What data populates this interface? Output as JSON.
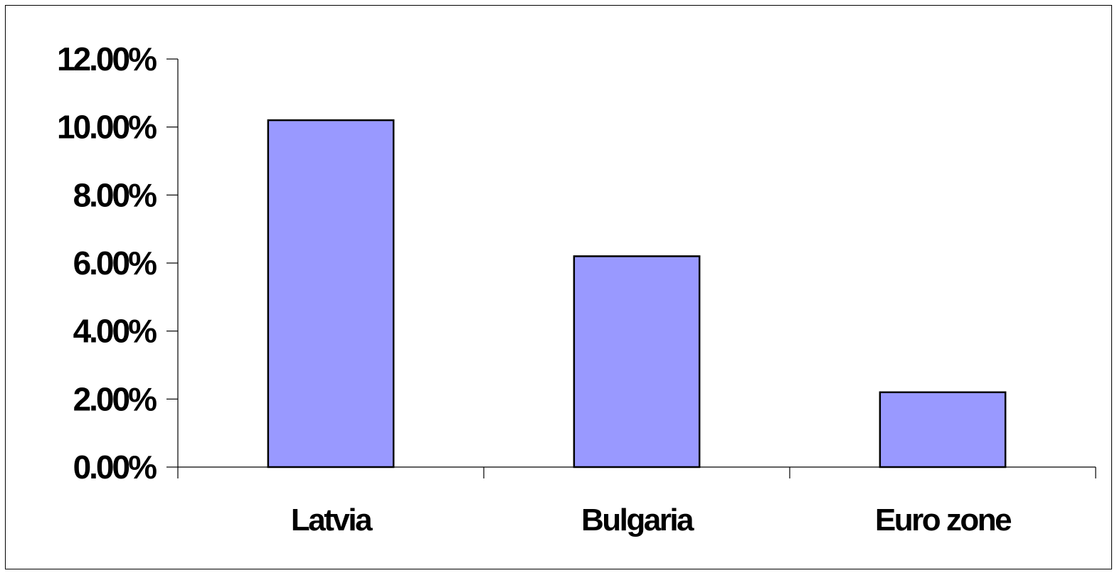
{
  "chart_data": {
    "type": "bar",
    "title": "",
    "xlabel": "",
    "ylabel": "",
    "categories": [
      "Latvia",
      "Bulgaria",
      "Euro zone"
    ],
    "values": [
      10.2,
      6.2,
      2.2
    ],
    "ylim": [
      0,
      12
    ],
    "yticks": [
      0,
      2,
      4,
      6,
      8,
      10,
      12
    ],
    "ytick_labels": [
      "0.00%",
      "2.00%",
      "4.00%",
      "6.00%",
      "8.00%",
      "10.00%",
      "12.00%"
    ],
    "grid": false,
    "legend": "none",
    "colors": {
      "bar_fill": "#9999ff",
      "bar_stroke": "#000000",
      "axis": "#000000"
    }
  }
}
